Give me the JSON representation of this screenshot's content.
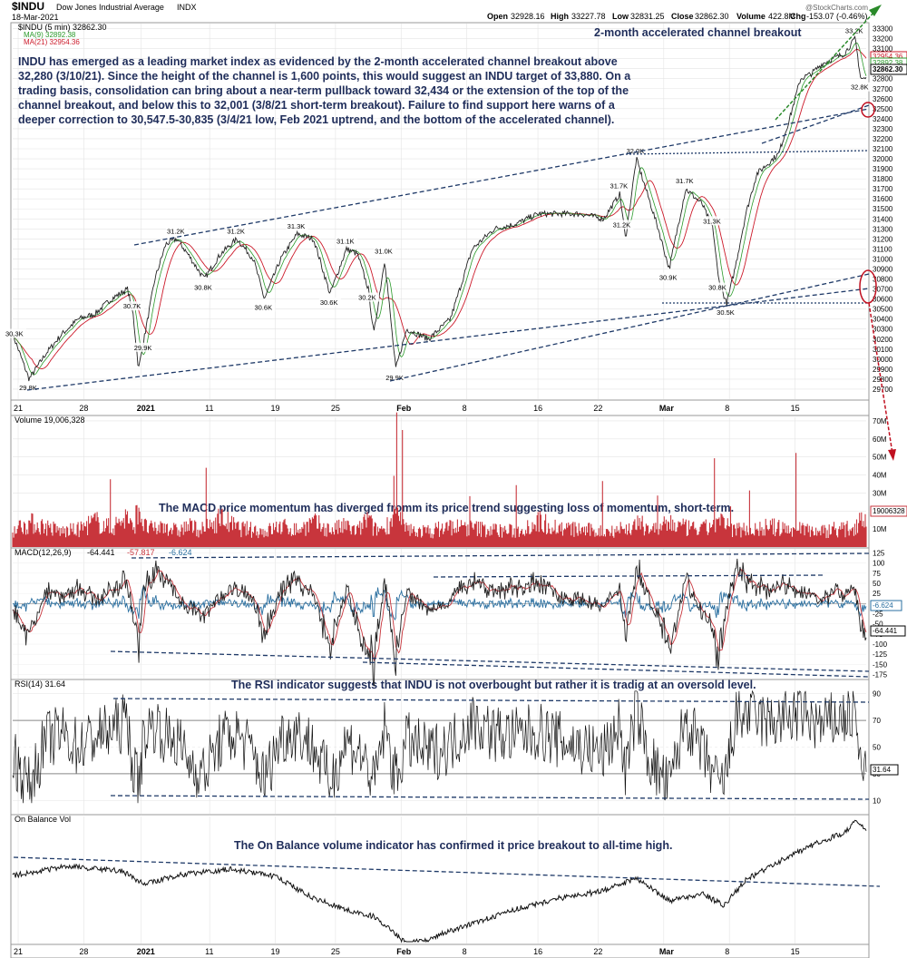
{
  "header": {
    "symbol": "$INDU",
    "name": "Dow Jones Industrial Average",
    "exchange": "INDX",
    "date": "18-Mar-2021",
    "open_label": "Open",
    "open": "32928.16",
    "high_label": "High",
    "high": "33227.78",
    "low_label": "Low",
    "low": "32831.25",
    "close_label": "Close",
    "close": "32862.30",
    "volume_label": "Volume",
    "volume": "422.8M",
    "chg_label": "Chg",
    "chg": "-153.07 (-0.46%)",
    "watermark": "@StockCharts.com"
  },
  "price_panel": {
    "legend_main": "$INDU (5 min) 32862.30",
    "legend_ma9": "MA(9) 32892.38",
    "legend_ma21": "MA(21) 32954.36",
    "annotation_title": "2-month accelerated channel breakout",
    "annotation_text": [
      "INDU has emerged as a leading market index as evidenced by the 2-month accelerated channel breakout above",
      "32,280 (3/10/21). Since the height of the channel is 1,600 points, this would suggest an INDU target of 33,880. On a",
      "trading basis, consolidation can bring about a near-term pullback toward 32,434 or the extension of the top of the",
      "channel breakout, and below this to 32,001 (3/8/21 short-term breakout). Failure to find support here warns of a",
      "deeper correction to 30,547.5-30,835 (3/4/21 low, Feb 2021 uptrend, and the bottom of the accelerated channel)."
    ],
    "ylim": [
      29600,
      33350
    ],
    "y_ticks": [
      "33300",
      "33200",
      "33100",
      "33000",
      "32900",
      "32800",
      "32700",
      "32600",
      "32500",
      "32400",
      "32300",
      "32200",
      "32100",
      "32000",
      "31900",
      "31800",
      "31700",
      "31600",
      "31500",
      "31400",
      "31300",
      "31200",
      "31100",
      "31000",
      "30900",
      "30800",
      "30700",
      "30600",
      "30500",
      "30400",
      "30300",
      "30200",
      "30100",
      "30000",
      "29900",
      "29800",
      "29700"
    ],
    "last_ma21_label": "32954.36",
    "last_ma9_label": "32892.38",
    "last_close_label": "32862.30",
    "point_labels": [
      {
        "t": 0.5,
        "text": "30.3K"
      },
      {
        "t": 3,
        "text": "29.8K"
      },
      {
        "t": 22,
        "text": "30.7K"
      },
      {
        "t": 24,
        "text": "29.9K"
      },
      {
        "t": 30,
        "text": "31.2K"
      },
      {
        "t": 35,
        "text": "30.8K"
      },
      {
        "t": 41,
        "text": "31.2K"
      },
      {
        "t": 46,
        "text": "30.6K"
      },
      {
        "t": 52,
        "text": "31.3K"
      },
      {
        "t": 58,
        "text": "30.6K"
      },
      {
        "t": 61,
        "text": "31.1K"
      },
      {
        "t": 65,
        "text": "30.2K"
      },
      {
        "t": 68,
        "text": "31.0K"
      },
      {
        "t": 70,
        "text": "29.9K"
      },
      {
        "t": 111,
        "text": "31.7K"
      },
      {
        "t": 111.5,
        "text": "31.2K"
      },
      {
        "t": 114,
        "text": "32.0K"
      },
      {
        "t": 120,
        "text": "30.9K"
      },
      {
        "t": 123,
        "text": "31.7K"
      },
      {
        "t": 128,
        "text": "31.3K"
      },
      {
        "t": 129,
        "text": "30.8K"
      },
      {
        "t": 130.5,
        "text": "30.5K"
      },
      {
        "t": 154,
        "text": "33.2K"
      },
      {
        "t": 155,
        "text": "32.8K"
      }
    ]
  },
  "x_axis": {
    "labels": [
      {
        "t": 1,
        "text": "21"
      },
      {
        "t": 13,
        "text": "28"
      },
      {
        "t": 23.5,
        "text": "2021"
      },
      {
        "t": 36,
        "text": "11"
      },
      {
        "t": 48,
        "text": "19"
      },
      {
        "t": 59,
        "text": "25"
      },
      {
        "t": 71,
        "text": "Feb"
      },
      {
        "t": 83,
        "text": "8"
      },
      {
        "t": 96,
        "text": "16"
      },
      {
        "t": 107,
        "text": "22"
      },
      {
        "t": 119,
        "text": "Mar"
      },
      {
        "t": 131,
        "text": "8"
      },
      {
        "t": 143,
        "text": "15"
      }
    ]
  },
  "volume_panel": {
    "legend": "Volume 19,006,328",
    "annotation": "The MACD price momentum has diverged fromm its price trend suggesting loss of momentum, short-term.",
    "y_ticks": [
      "70M",
      "60M",
      "50M",
      "40M",
      "30M",
      "20M",
      "10M"
    ],
    "last_label": "19006328"
  },
  "macd_panel": {
    "legend_name": "MACD(12,26,9)",
    "legend_macd": "-64.441",
    "legend_signal": "-57.817",
    "legend_hist": "-6.624",
    "y_ticks": [
      "125",
      "100",
      "75",
      "50",
      "25",
      "-25",
      "-50",
      "-75",
      "-100",
      "-125",
      "-150",
      "-175"
    ],
    "last_hist_label": "-6.624",
    "last_macd_label": "-64.441"
  },
  "rsi_panel": {
    "legend": "RSI(14) 31.64",
    "annotation": "The RSI indicator suggests that INDU is not overbought but rather it is tradig at an oversold level.",
    "y_ticks": [
      "90",
      "70",
      "50",
      "30",
      "10"
    ],
    "last_label": "31.64"
  },
  "obv_panel": {
    "legend": "On Balance Vol",
    "annotation": "The On Balance volume indicator has confirmed it price breakout to all-time high."
  },
  "colors": {
    "price_line": "#222222",
    "ma9": "#2a9a2a",
    "ma21": "#cc1a2a",
    "volume": "#c8353c",
    "macd_line": "#222222",
    "macd_signal": "#c8353c",
    "macd_hist": "#2a6fa0",
    "trendline": "#1f3a68",
    "annotation_text": "#1f2d5a",
    "target_arrow": "#2a8a2a",
    "break_arrow": "#c01020",
    "grid": "#b0b0b0"
  },
  "chart_data": {
    "type": "line",
    "title": "$INDU Dow Jones Industrial Average INDX",
    "x_unit": "trading sessions (5 min bars), 21 Dec 2020 – 18 Mar 2021",
    "x": [
      0,
      3,
      6,
      9,
      12,
      15,
      18,
      21,
      22,
      23,
      24,
      26,
      28,
      30,
      32,
      35,
      38,
      41,
      44,
      46,
      49,
      52,
      55,
      58,
      61,
      63,
      65,
      66,
      68,
      70,
      72,
      76,
      80,
      84,
      88,
      92,
      96,
      100,
      104,
      108,
      111,
      112,
      114,
      116,
      118,
      120,
      123,
      126,
      128,
      129,
      130.5,
      132,
      134,
      136,
      138,
      140,
      142,
      144,
      146,
      148,
      150,
      152,
      154,
      155
    ],
    "series": [
      {
        "name": "$INDU (5 min)",
        "values": [
          30250,
          29800,
          30050,
          30250,
          30400,
          30450,
          30600,
          30700,
          30450,
          29900,
          30200,
          30800,
          31150,
          31200,
          31050,
          30800,
          31050,
          31200,
          31000,
          30600,
          31000,
          31250,
          31200,
          30650,
          31100,
          31050,
          30700,
          30250,
          31000,
          29900,
          30300,
          30200,
          30400,
          31100,
          31300,
          31350,
          31450,
          31450,
          31450,
          31400,
          31650,
          31200,
          32000,
          31650,
          31300,
          30900,
          31700,
          31550,
          31300,
          30800,
          30550,
          30900,
          31450,
          31850,
          31950,
          32050,
          32400,
          32800,
          32850,
          32950,
          33000,
          33050,
          33200,
          32800
        ]
      },
      {
        "name": "Volume",
        "values": [
          10000000,
          14000000,
          12000000,
          9000000,
          10000000,
          15000000,
          11000000,
          18000000,
          9000000,
          25000000,
          12000000,
          10000000,
          13000000,
          9000000,
          12000000,
          10000000,
          17000000,
          11000000,
          10000000,
          9000000,
          12000000,
          10000000,
          14000000,
          10000000,
          12000000,
          9000000,
          17000000,
          10000000,
          11000000,
          19000000,
          10000000,
          9000000,
          12000000,
          11000000,
          10000000,
          9000000,
          15000000,
          11000000,
          10000000,
          9000000,
          11000000,
          10000000,
          13000000,
          12000000,
          10000000,
          14000000,
          11000000,
          10000000,
          13000000,
          15000000,
          12000000,
          10000000,
          11000000,
          10000000,
          12000000,
          11000000,
          10000000,
          12000000,
          10000000,
          9000000,
          11000000,
          10000000,
          12000000,
          19006328
        ]
      },
      {
        "name": "MACD(12,26,9)",
        "values": [
          -20,
          -90,
          30,
          20,
          40,
          10,
          30,
          60,
          -30,
          -120,
          40,
          80,
          60,
          20,
          -10,
          -30,
          20,
          40,
          10,
          -90,
          30,
          60,
          20,
          -110,
          40,
          -60,
          -120,
          -150,
          60,
          -130,
          30,
          -20,
          10,
          60,
          30,
          40,
          50,
          20,
          10,
          -10,
          40,
          -80,
          90,
          20,
          -30,
          -120,
          60,
          -20,
          -60,
          -140,
          -10,
          80,
          60,
          40,
          30,
          50,
          40,
          30,
          20,
          10,
          30,
          20,
          40,
          -64.441
        ]
      },
      {
        "name": "RSI(14)",
        "values": [
          45,
          20,
          55,
          60,
          50,
          58,
          62,
          70,
          35,
          22,
          60,
          68,
          58,
          55,
          40,
          30,
          55,
          60,
          45,
          25,
          58,
          62,
          50,
          24,
          55,
          48,
          35,
          20,
          65,
          25,
          55,
          45,
          52,
          70,
          60,
          58,
          62,
          55,
          50,
          45,
          68,
          30,
          80,
          45,
          30,
          20,
          72,
          45,
          32,
          18,
          30,
          70,
          75,
          72,
          68,
          70,
          72,
          76,
          70,
          65,
          70,
          72,
          75,
          31.64
        ]
      }
    ],
    "ylim": [
      29600,
      33350
    ]
  }
}
